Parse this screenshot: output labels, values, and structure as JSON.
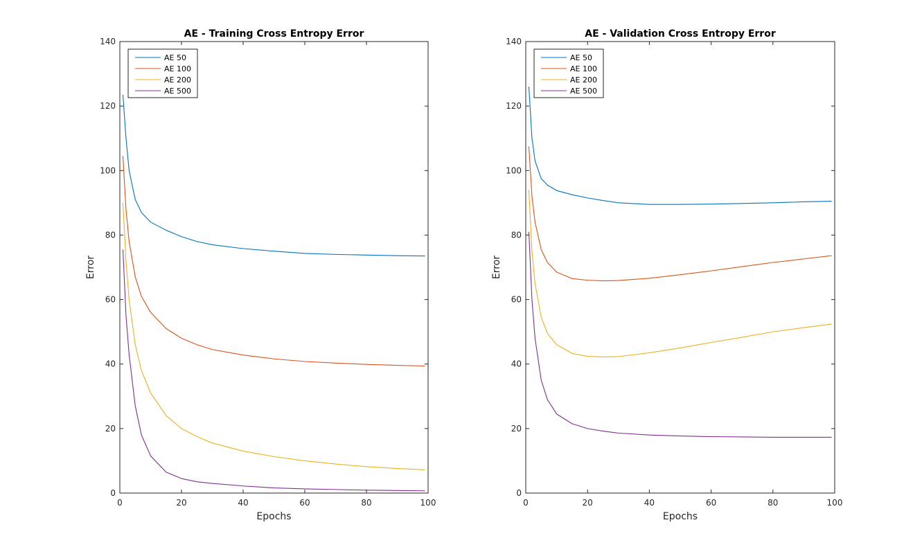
{
  "chart_data": [
    {
      "type": "line",
      "title": "AE - Training Cross Entropy Error",
      "xlabel": "Epochs",
      "ylabel": "Error",
      "xlim": [
        0,
        100
      ],
      "ylim": [
        0,
        140
      ],
      "xticks": [
        0,
        20,
        40,
        60,
        80,
        100
      ],
      "yticks": [
        0,
        20,
        40,
        60,
        80,
        100,
        120,
        140
      ],
      "grid": false,
      "legend_position": "top-left",
      "x": [
        1,
        2,
        3,
        5,
        7,
        10,
        15,
        20,
        25,
        30,
        40,
        50,
        60,
        70,
        80,
        90,
        99
      ],
      "series": [
        {
          "name": "AE 50",
          "color": "#0072BD",
          "values": [
            123.5,
            110,
            100,
            91,
            87,
            84,
            81.5,
            79.5,
            78,
            77,
            75.8,
            75,
            74.3,
            74,
            73.8,
            73.6,
            73.5
          ]
        },
        {
          "name": "AE 100",
          "color": "#D95319",
          "values": [
            104.5,
            88,
            78,
            67,
            61,
            56,
            51,
            48,
            46,
            44.5,
            42.8,
            41.6,
            40.8,
            40.3,
            39.9,
            39.6,
            39.4
          ]
        },
        {
          "name": "AE 200",
          "color": "#EDB120",
          "values": [
            90,
            72,
            60,
            46,
            38,
            31,
            24,
            20,
            17.5,
            15.5,
            13,
            11.3,
            10,
            9,
            8.2,
            7.6,
            7.2
          ]
        },
        {
          "name": "AE 500",
          "color": "#7E2F8E",
          "values": [
            75.5,
            55,
            43,
            27,
            18,
            11.5,
            6.5,
            4.5,
            3.5,
            3,
            2.2,
            1.6,
            1.3,
            1.1,
            0.9,
            0.8,
            0.7
          ]
        }
      ]
    },
    {
      "type": "line",
      "title": "AE - Validation Cross Entropy Error",
      "xlabel": "Epochs",
      "ylabel": "Error",
      "xlim": [
        0,
        100
      ],
      "ylim": [
        0,
        140
      ],
      "xticks": [
        0,
        20,
        40,
        60,
        80,
        100
      ],
      "yticks": [
        0,
        20,
        40,
        60,
        80,
        100,
        120,
        140
      ],
      "grid": false,
      "legend_position": "top-left",
      "x": [
        1,
        2,
        3,
        5,
        7,
        10,
        15,
        20,
        25,
        30,
        40,
        50,
        60,
        70,
        80,
        90,
        99
      ],
      "series": [
        {
          "name": "AE 50",
          "color": "#0072BD",
          "values": [
            126,
            110,
            103,
            97.5,
            95.5,
            93.8,
            92.5,
            91.5,
            90.7,
            90,
            89.5,
            89.5,
            89.6,
            89.8,
            90,
            90.3,
            90.5
          ]
        },
        {
          "name": "AE 100",
          "color": "#D95319",
          "values": [
            107.5,
            92,
            84,
            75.5,
            71.5,
            68.5,
            66.5,
            66,
            65.8,
            65.9,
            66.6,
            67.7,
            68.9,
            70.2,
            71.5,
            72.6,
            73.6
          ]
        },
        {
          "name": "AE 200",
          "color": "#EDB120",
          "values": [
            94,
            75,
            65,
            54.5,
            49.5,
            46,
            43.3,
            42.4,
            42.2,
            42.3,
            43.5,
            45,
            46.7,
            48.3,
            50,
            51.3,
            52.4
          ]
        },
        {
          "name": "AE 500",
          "color": "#7E2F8E",
          "values": [
            81,
            60,
            48,
            35,
            29,
            24.5,
            21.5,
            20,
            19.2,
            18.6,
            18,
            17.7,
            17.5,
            17.4,
            17.3,
            17.3,
            17.3
          ]
        }
      ]
    }
  ]
}
